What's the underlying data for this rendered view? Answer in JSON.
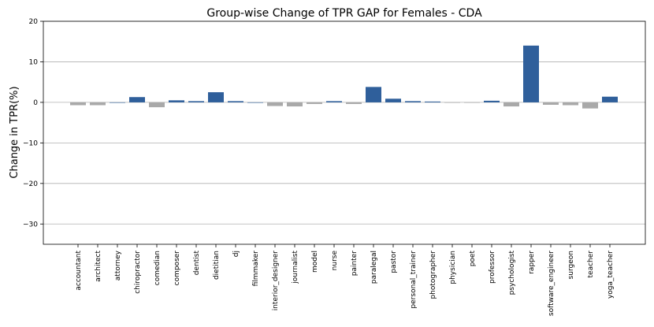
{
  "chart_data": {
    "type": "bar",
    "title": "Group-wise Change of TPR GAP for Females - CDA",
    "xlabel": "",
    "ylabel": "Change in TPR(%)",
    "ylim": [
      -35,
      20
    ],
    "yticks": [
      20,
      10,
      0,
      -10,
      -20,
      -30
    ],
    "ytick_labels": [
      "20",
      "10",
      "0",
      "−10",
      "−20",
      "−30"
    ],
    "grid": "horizontal",
    "colors": {
      "positive": "#2f5f9b",
      "negative": "#a9a9a9",
      "grid": "#b0b0b0",
      "axis": "#000000"
    },
    "categories": [
      "accountant",
      "architect",
      "attorney",
      "chiropractor",
      "comedian",
      "composer",
      "dentist",
      "dietitian",
      "dj",
      "filmmaker",
      "interior_designer",
      "journalist",
      "model",
      "nurse",
      "painter",
      "paralegal",
      "pastor",
      "personal_trainer",
      "photographer",
      "physician",
      "poet",
      "professor",
      "psychologist",
      "rapper",
      "software_engineer",
      "surgeon",
      "teacher",
      "yoga_teacher"
    ],
    "values": [
      -0.7,
      -0.7,
      0.0,
      1.3,
      -1.2,
      0.5,
      0.3,
      2.5,
      0.3,
      0.0,
      -0.9,
      -1.0,
      -0.4,
      0.3,
      -0.4,
      3.8,
      0.9,
      0.3,
      0.2,
      -0.1,
      -0.05,
      0.4,
      -1.0,
      14.0,
      -0.6,
      -0.7,
      -1.5,
      1.4
    ]
  }
}
